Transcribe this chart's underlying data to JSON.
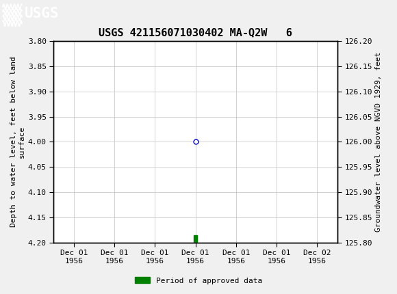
{
  "title": "USGS 421156071030402 MA-Q2W   6",
  "left_ylabel": "Depth to water level, feet below land\nsurface",
  "right_ylabel": "Groundwater level above NGVD 1929, feet",
  "ylim_left_top": 3.8,
  "ylim_left_bottom": 4.2,
  "ylim_right_top": 126.2,
  "ylim_right_bottom": 125.8,
  "left_yticks": [
    3.8,
    3.85,
    3.9,
    3.95,
    4.0,
    4.05,
    4.1,
    4.15,
    4.2
  ],
  "right_yticks": [
    126.2,
    126.15,
    126.1,
    126.05,
    126.0,
    125.95,
    125.9,
    125.85,
    125.8
  ],
  "data_point_x": 3,
  "data_point_y": 4.0,
  "data_point_color": "#0000cc",
  "data_point_marker": "o",
  "data_point_size": 5,
  "bar_x": 3,
  "bar_y_bottom": 4.185,
  "bar_height": 0.018,
  "bar_color": "#008000",
  "bar_width": 0.08,
  "xtick_labels": [
    "Dec 01\n1956",
    "Dec 01\n1956",
    "Dec 01\n1956",
    "Dec 01\n1956",
    "Dec 01\n1956",
    "Dec 01\n1956",
    "Dec 02\n1956"
  ],
  "xtick_positions": [
    0,
    1,
    2,
    3,
    4,
    5,
    6
  ],
  "xlim": [
    -0.5,
    6.5
  ],
  "header_color": "#1a6b3c",
  "background_color": "#f0f0f0",
  "plot_background": "#ffffff",
  "grid_color": "#c0c0c0",
  "legend_label": "Period of approved data",
  "legend_color": "#008000",
  "title_fontsize": 11,
  "axis_label_fontsize": 8,
  "tick_fontsize": 8
}
